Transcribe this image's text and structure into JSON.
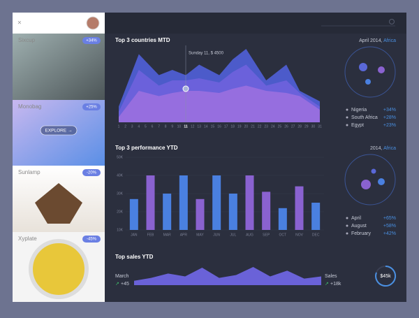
{
  "sidebar": {
    "items": [
      {
        "name": "Sixcup",
        "badge": "+34%"
      },
      {
        "name": "Monobag",
        "badge": "+25%"
      },
      {
        "name": "Sunlamp",
        "badge": "-20%"
      },
      {
        "name": "Xyplate",
        "badge": "-45%"
      }
    ],
    "button": "EXPLORE →"
  },
  "countries": {
    "title": "Top 3 countries MTD",
    "period": "April 2014,",
    "region": "Africa",
    "annotation": "Sunday 11, $ 4500",
    "chart": {
      "type": "area",
      "xlim": [
        1,
        31
      ],
      "xticks": [
        1,
        2,
        3,
        4,
        5,
        6,
        7,
        8,
        9,
        10,
        11,
        12,
        13,
        14,
        15,
        16,
        17,
        18,
        19,
        20,
        21,
        22,
        23,
        24,
        25,
        26,
        27,
        28,
        29,
        30,
        31
      ],
      "highlight": 11,
      "x": [
        1,
        4,
        7,
        9,
        11,
        13,
        16,
        18,
        20,
        23,
        26,
        28,
        31
      ],
      "series": [
        {
          "color": "#4f60d6",
          "values": [
            15,
            65,
            45,
            50,
            45,
            55,
            45,
            60,
            70,
            40,
            55,
            30,
            20
          ]
        },
        {
          "color": "#6e62dc",
          "values": [
            10,
            50,
            35,
            40,
            40,
            42,
            38,
            48,
            55,
            35,
            40,
            28,
            15
          ]
        },
        {
          "color": "#9a70e0",
          "values": [
            5,
            30,
            25,
            28,
            30,
            30,
            28,
            32,
            35,
            30,
            28,
            25,
            12
          ]
        }
      ]
    },
    "legend": [
      {
        "name": "Nigeria",
        "change": "+34%"
      },
      {
        "name": "South Africa",
        "change": "+28%"
      },
      {
        "name": "Egypt",
        "change": "+23%"
      }
    ]
  },
  "performance": {
    "title": "Top 3 performance YTD",
    "period": "2014,",
    "region": "Africa",
    "chart": {
      "type": "bar",
      "categories": [
        "JAN",
        "FEB",
        "MAR",
        "APR",
        "MAY",
        "JUN",
        "JUL",
        "AUG",
        "SEP",
        "OCT",
        "NOV",
        "DEC"
      ],
      "values": [
        27000,
        40000,
        30000,
        40000,
        27000,
        40000,
        30000,
        40000,
        31000,
        22000,
        34000,
        25000
      ],
      "colors": [
        "#4a80e0",
        "#8a62d0",
        "#4a80e0",
        "#4a80e0",
        "#8a62d0",
        "#4a80e0",
        "#4a80e0",
        "#8a62d0",
        "#8a62d0",
        "#4a80e0",
        "#8a62d0",
        "#4a80e0"
      ],
      "ylim": [
        10000,
        50000
      ],
      "yticks": [
        {
          "value": 10000,
          "label": "10K"
        },
        {
          "value": 20000,
          "label": "20K"
        },
        {
          "value": 30000,
          "label": "30K"
        },
        {
          "value": 40000,
          "label": "40K"
        },
        {
          "value": 50000,
          "label": "50K"
        }
      ],
      "grid": true
    },
    "legend": [
      {
        "name": "April",
        "change": "+65%"
      },
      {
        "name": "August",
        "change": "+58%"
      },
      {
        "name": "February",
        "change": "+42%"
      }
    ]
  },
  "sales": {
    "title": "Top sales YTD",
    "left_label": "March",
    "left_change": "+45",
    "right_label": "Sales",
    "right_change": "+18k",
    "total": "$45k",
    "chart": {
      "type": "area",
      "color": "#6a62d8",
      "values": [
        6,
        10,
        16,
        12,
        24,
        10,
        14,
        25,
        12,
        20,
        9,
        12
      ]
    }
  }
}
